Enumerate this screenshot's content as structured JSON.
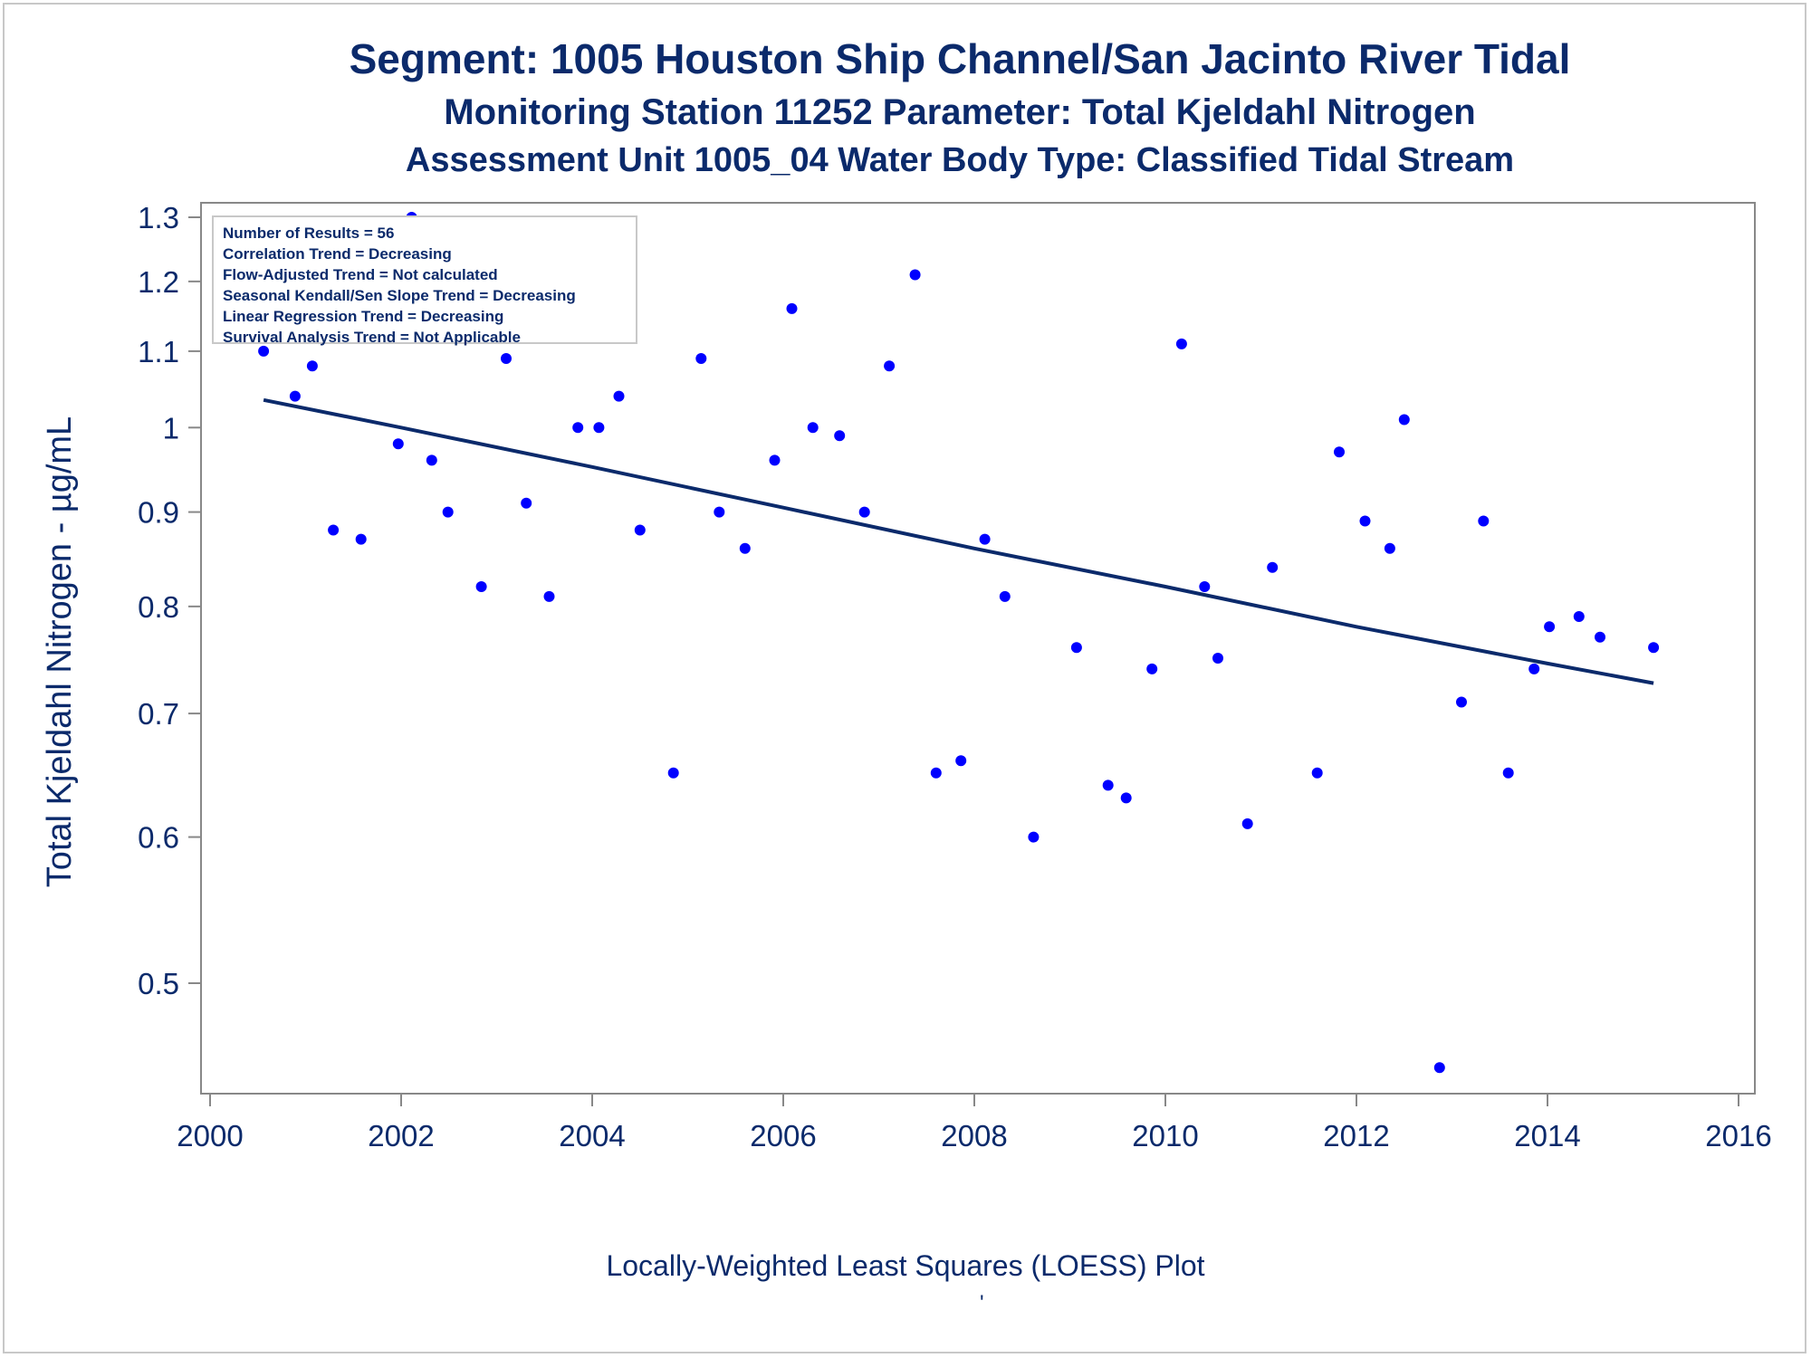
{
  "titles": {
    "line1": "Segment: 1005  Houston Ship Channel/San Jacinto River Tidal",
    "line2": "Monitoring Station 11252 Parameter: Total Kjeldahl Nitrogen",
    "line3": "Assessment Unit 1005_04   Water Body Type: Classified Tidal Stream"
  },
  "stats": [
    "Number of Results = 56",
    "Correlation Trend = Decreasing",
    "Flow-Adjusted Trend = Not calculated",
    "Seasonal Kendall/Sen Slope Trend = Decreasing",
    "Linear Regression Trend = Decreasing",
    "Survival Analysis Trend = Not Applicable"
  ],
  "footnote": "Locally-Weighted Least Squares (LOESS) Plot",
  "footnote_mark": "'",
  "colors": {
    "text": "#0b2a6b",
    "points": "#0000ff",
    "trend": "#0b2a6b",
    "axis": "#888888"
  },
  "chart_data": {
    "type": "scatter",
    "ylabel": "Total Kjeldahl Nitrogen -  µg/mL",
    "xlabel": "",
    "y_scale": "log",
    "xlim": [
      2000,
      2016
    ],
    "ylim": [
      0.45,
      1.3
    ],
    "x_ticks": [
      "2000",
      "2002",
      "2004",
      "2006",
      "2008",
      "2010",
      "2012",
      "2014",
      "2016"
    ],
    "y_ticks": [
      "0.5",
      "0.6",
      "0.7",
      "0.8",
      "0.9",
      "1",
      "1.1",
      "1.2",
      "1.3"
    ],
    "grid": false,
    "points": [
      {
        "x": 2000.56,
        "y": 1.1
      },
      {
        "x": 2000.89,
        "y": 1.04
      },
      {
        "x": 2001.07,
        "y": 1.08
      },
      {
        "x": 2001.29,
        "y": 0.88
      },
      {
        "x": 2001.58,
        "y": 0.87
      },
      {
        "x": 2001.97,
        "y": 0.98
      },
      {
        "x": 2002.11,
        "y": 1.3
      },
      {
        "x": 2002.32,
        "y": 0.96
      },
      {
        "x": 2002.49,
        "y": 0.9
      },
      {
        "x": 2002.84,
        "y": 0.82
      },
      {
        "x": 2003.1,
        "y": 1.09
      },
      {
        "x": 2003.31,
        "y": 0.91
      },
      {
        "x": 2003.55,
        "y": 0.81
      },
      {
        "x": 2003.85,
        "y": 1.0
      },
      {
        "x": 2004.07,
        "y": 1.0
      },
      {
        "x": 2004.28,
        "y": 1.04
      },
      {
        "x": 2004.5,
        "y": 0.88
      },
      {
        "x": 2004.85,
        "y": 0.65
      },
      {
        "x": 2005.14,
        "y": 1.09
      },
      {
        "x": 2005.33,
        "y": 0.9
      },
      {
        "x": 2005.6,
        "y": 0.86
      },
      {
        "x": 2005.91,
        "y": 0.96
      },
      {
        "x": 2006.09,
        "y": 1.16
      },
      {
        "x": 2006.31,
        "y": 1.0
      },
      {
        "x": 2006.59,
        "y": 0.99
      },
      {
        "x": 2006.85,
        "y": 0.9
      },
      {
        "x": 2007.11,
        "y": 1.08
      },
      {
        "x": 2007.38,
        "y": 1.21
      },
      {
        "x": 2007.6,
        "y": 0.65
      },
      {
        "x": 2007.86,
        "y": 0.66
      },
      {
        "x": 2008.11,
        "y": 0.87
      },
      {
        "x": 2008.32,
        "y": 0.81
      },
      {
        "x": 2008.62,
        "y": 0.6
      },
      {
        "x": 2009.07,
        "y": 0.76
      },
      {
        "x": 2009.4,
        "y": 0.64
      },
      {
        "x": 2009.59,
        "y": 0.63
      },
      {
        "x": 2009.86,
        "y": 0.74
      },
      {
        "x": 2010.17,
        "y": 1.11
      },
      {
        "x": 2010.41,
        "y": 0.82
      },
      {
        "x": 2010.55,
        "y": 0.75
      },
      {
        "x": 2010.86,
        "y": 0.61
      },
      {
        "x": 2011.12,
        "y": 0.84
      },
      {
        "x": 2011.59,
        "y": 0.65
      },
      {
        "x": 2011.82,
        "y": 0.97
      },
      {
        "x": 2012.09,
        "y": 0.89
      },
      {
        "x": 2012.35,
        "y": 0.86
      },
      {
        "x": 2012.5,
        "y": 1.01
      },
      {
        "x": 2012.87,
        "y": 0.45
      },
      {
        "x": 2013.1,
        "y": 0.71
      },
      {
        "x": 2013.33,
        "y": 0.89
      },
      {
        "x": 2013.59,
        "y": 0.65
      },
      {
        "x": 2013.86,
        "y": 0.74
      },
      {
        "x": 2014.02,
        "y": 0.78
      },
      {
        "x": 2014.33,
        "y": 0.79
      },
      {
        "x": 2014.55,
        "y": 0.77
      },
      {
        "x": 2015.11,
        "y": 0.76
      }
    ],
    "trend_line": [
      {
        "x": 2000.56,
        "y": 1.035
      },
      {
        "x": 2002.0,
        "y": 1.0
      },
      {
        "x": 2004.0,
        "y": 0.952
      },
      {
        "x": 2006.0,
        "y": 0.905
      },
      {
        "x": 2008.0,
        "y": 0.86
      },
      {
        "x": 2010.0,
        "y": 0.82
      },
      {
        "x": 2012.0,
        "y": 0.78
      },
      {
        "x": 2014.0,
        "y": 0.745
      },
      {
        "x": 2015.11,
        "y": 0.727
      }
    ]
  }
}
